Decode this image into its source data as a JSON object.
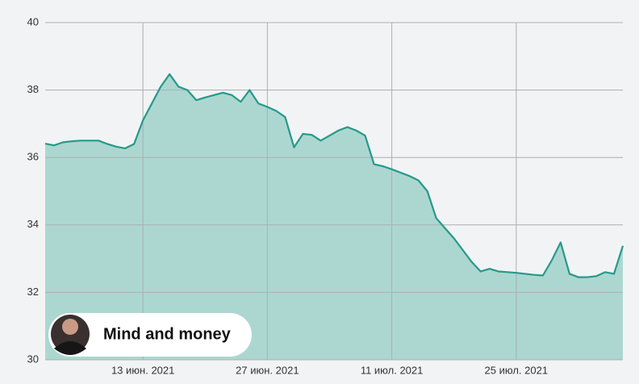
{
  "chart_data": {
    "type": "area",
    "x": [
      "2021-06-02",
      "2021-06-03",
      "2021-06-04",
      "2021-06-05",
      "2021-06-06",
      "2021-06-07",
      "2021-06-08",
      "2021-06-09",
      "2021-06-10",
      "2021-06-11",
      "2021-06-12",
      "2021-06-13",
      "2021-06-14",
      "2021-06-15",
      "2021-06-16",
      "2021-06-17",
      "2021-06-18",
      "2021-06-19",
      "2021-06-20",
      "2021-06-21",
      "2021-06-22",
      "2021-06-23",
      "2021-06-24",
      "2021-06-25",
      "2021-06-26",
      "2021-06-27",
      "2021-06-28",
      "2021-06-29",
      "2021-06-30",
      "2021-07-01",
      "2021-07-02",
      "2021-07-03",
      "2021-07-04",
      "2021-07-05",
      "2021-07-06",
      "2021-07-07",
      "2021-07-08",
      "2021-07-09",
      "2021-07-10",
      "2021-07-11",
      "2021-07-12",
      "2021-07-13",
      "2021-07-14",
      "2021-07-15",
      "2021-07-16",
      "2021-07-17",
      "2021-07-18",
      "2021-07-19",
      "2021-07-20",
      "2021-07-21",
      "2021-07-22",
      "2021-07-23",
      "2021-07-24",
      "2021-07-25",
      "2021-07-26",
      "2021-07-27",
      "2021-07-28",
      "2021-07-29",
      "2021-07-30",
      "2021-07-31",
      "2021-08-01",
      "2021-08-02",
      "2021-08-03",
      "2021-08-04",
      "2021-08-05",
      "2021-08-06"
    ],
    "values": [
      36.41,
      36.36,
      36.45,
      36.48,
      36.5,
      36.5,
      36.5,
      36.4,
      36.32,
      36.27,
      36.4,
      37.1,
      37.6,
      38.1,
      38.47,
      38.1,
      38.0,
      37.7,
      37.78,
      37.85,
      37.92,
      37.85,
      37.65,
      38.0,
      37.6,
      37.5,
      37.38,
      37.2,
      36.3,
      36.7,
      36.67,
      36.5,
      36.65,
      36.8,
      36.9,
      36.8,
      36.65,
      35.8,
      35.74,
      35.65,
      35.55,
      35.45,
      35.32,
      35.0,
      34.2,
      33.9,
      33.6,
      33.25,
      32.9,
      32.62,
      32.7,
      32.62,
      32.6,
      32.58,
      32.55,
      32.52,
      32.5,
      32.95,
      33.48,
      32.55,
      32.45,
      32.45,
      32.48,
      32.6,
      32.55,
      33.38
    ],
    "color": "#26998a",
    "area_color": "#acd7d0",
    "xlim": [
      "2021-06-02",
      "2021-08-06"
    ],
    "xticks": [
      {
        "value": "2021-06-13",
        "label": "13 июн. 2021"
      },
      {
        "value": "2021-06-27",
        "label": "27 июн. 2021"
      },
      {
        "value": "2021-07-11",
        "label": "11 июл. 2021"
      },
      {
        "value": "2021-07-25",
        "label": "25 июл. 2021"
      }
    ],
    "ylim": [
      30,
      40
    ],
    "yticks": [
      30,
      32,
      34,
      36,
      38,
      40
    ],
    "grid": true,
    "badge": "Mind and money"
  }
}
